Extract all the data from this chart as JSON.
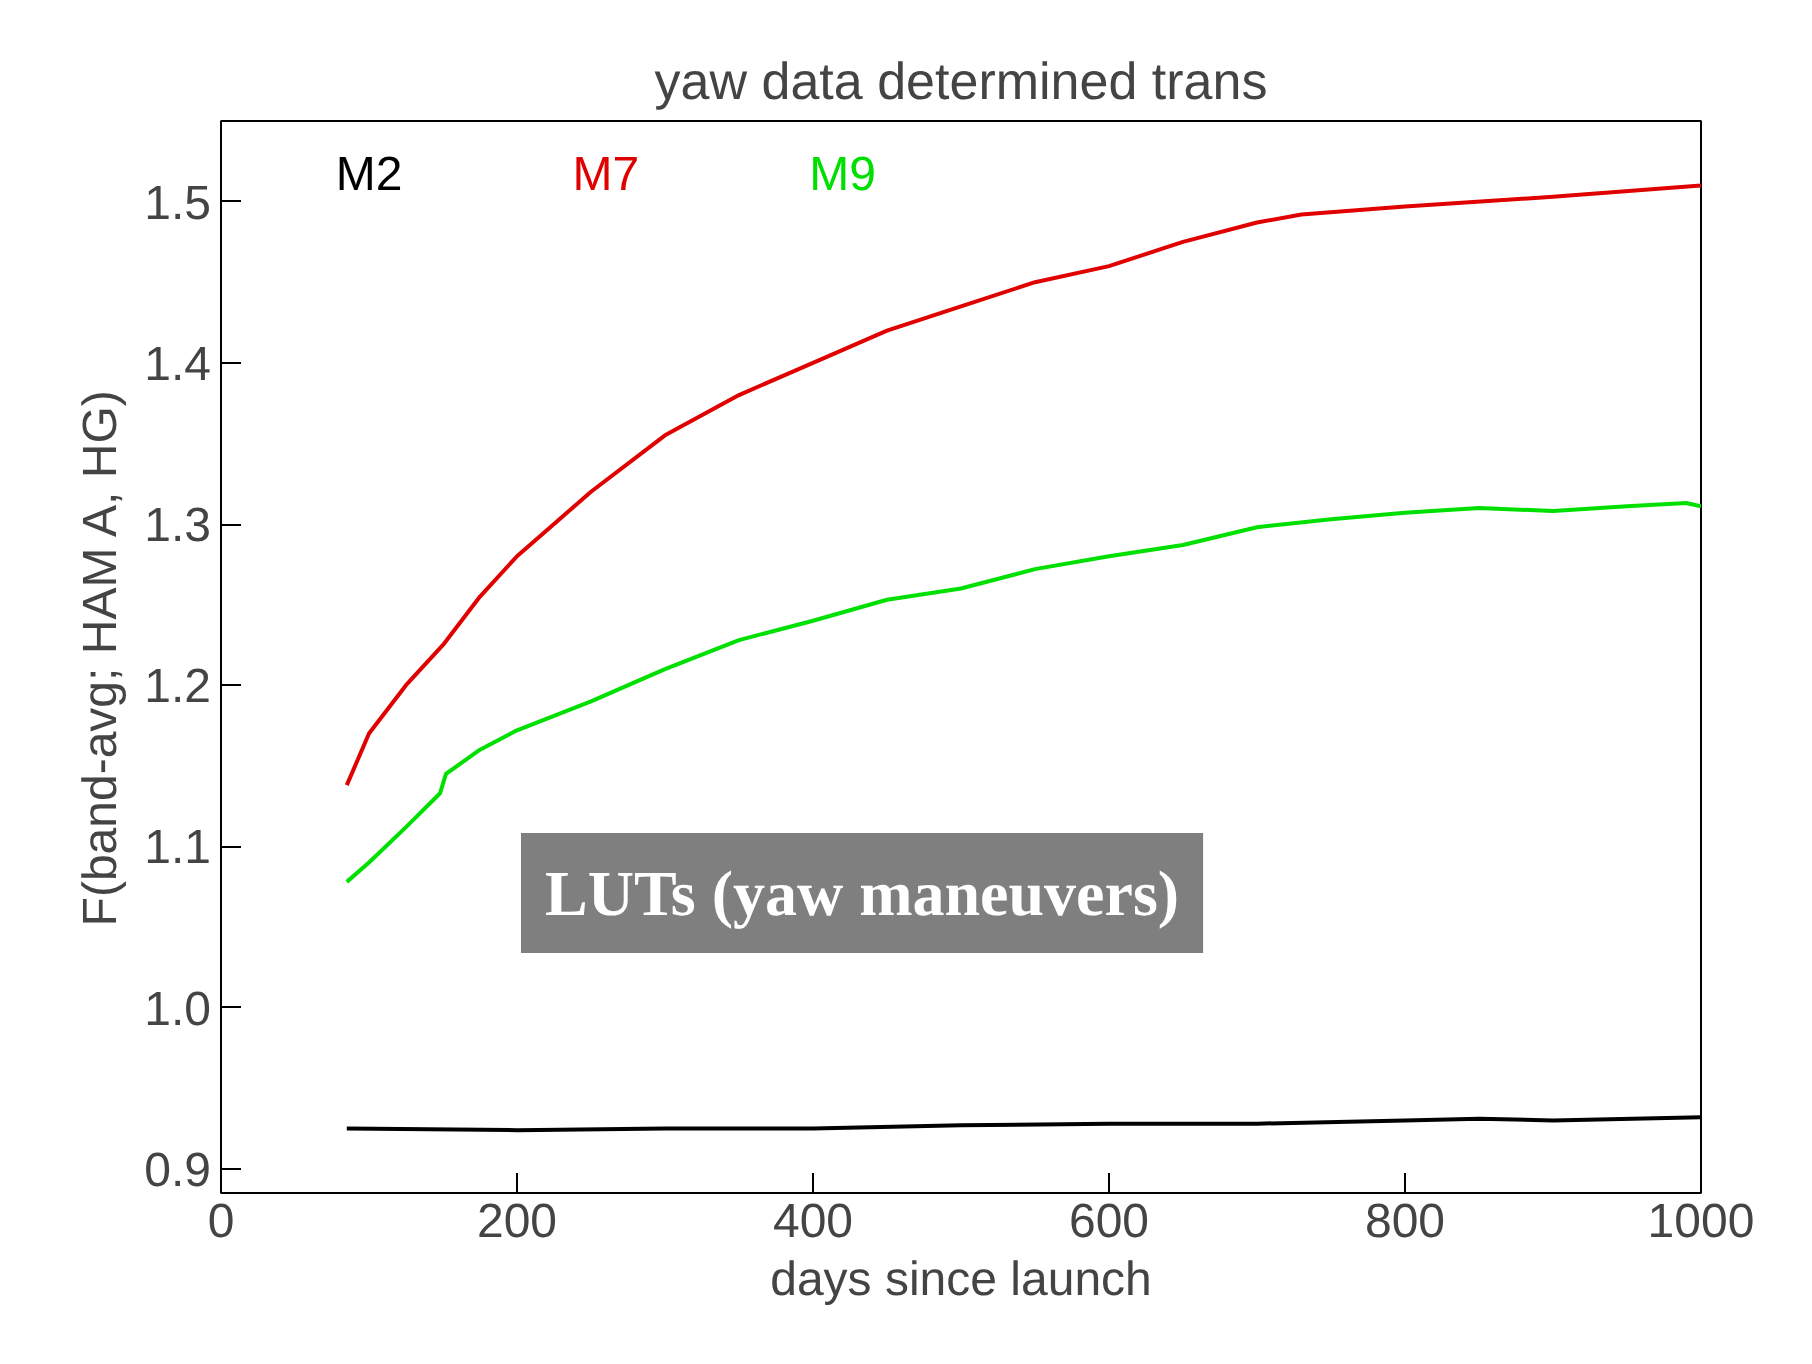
{
  "chart_data": {
    "type": "line",
    "title": "yaw data determined trans",
    "xlabel": "days since launch",
    "ylabel": "F(band-avg; HAM A, HG)",
    "xlim": [
      0,
      1000
    ],
    "ylim": [
      0.885,
      1.55
    ],
    "xticks": [
      0,
      200,
      400,
      600,
      800,
      1000
    ],
    "yticks": [
      {
        "value": 0.9,
        "label": "0.9"
      },
      {
        "value": 1.0,
        "label": "1.0"
      },
      {
        "value": 1.1,
        "label": "1.1"
      },
      {
        "value": 1.2,
        "label": "1.2"
      },
      {
        "value": 1.3,
        "label": "1.3"
      },
      {
        "value": 1.4,
        "label": "1.4"
      },
      {
        "value": 1.5,
        "label": "1.5"
      }
    ],
    "grid": false,
    "legend": "top left",
    "marker": "none",
    "line_style": "solid",
    "annotations": [
      "LUTs (yaw maneuvers)"
    ],
    "series": [
      {
        "name": "M2",
        "color": "#000000",
        "x": [
          85,
          200,
          300,
          400,
          500,
          600,
          700,
          800,
          850,
          900,
          1000
        ],
        "values": [
          0.925,
          0.924,
          0.925,
          0.925,
          0.927,
          0.928,
          0.928,
          0.93,
          0.931,
          0.93,
          0.932
        ]
      },
      {
        "name": "M7",
        "color": "#e00000",
        "x": [
          85,
          100,
          125,
          150,
          175,
          200,
          250,
          300,
          350,
          400,
          450,
          500,
          550,
          600,
          650,
          700,
          730,
          800,
          900,
          1000
        ],
        "values": [
          1.138,
          1.17,
          1.2,
          1.225,
          1.255,
          1.28,
          1.32,
          1.355,
          1.38,
          1.4,
          1.42,
          1.435,
          1.45,
          1.46,
          1.475,
          1.487,
          1.492,
          1.497,
          1.503,
          1.51
        ]
      },
      {
        "name": "M9",
        "color": "#00e000",
        "x": [
          85,
          100,
          125,
          148,
          152,
          175,
          200,
          250,
          300,
          350,
          400,
          450,
          500,
          550,
          600,
          650,
          700,
          750,
          800,
          850,
          900,
          950,
          990,
          1000
        ],
        "values": [
          1.078,
          1.09,
          1.112,
          1.133,
          1.145,
          1.16,
          1.172,
          1.19,
          1.21,
          1.228,
          1.24,
          1.253,
          1.26,
          1.272,
          1.28,
          1.287,
          1.298,
          1.303,
          1.307,
          1.31,
          1.308,
          1.311,
          1.313,
          1.311
        ]
      }
    ]
  }
}
